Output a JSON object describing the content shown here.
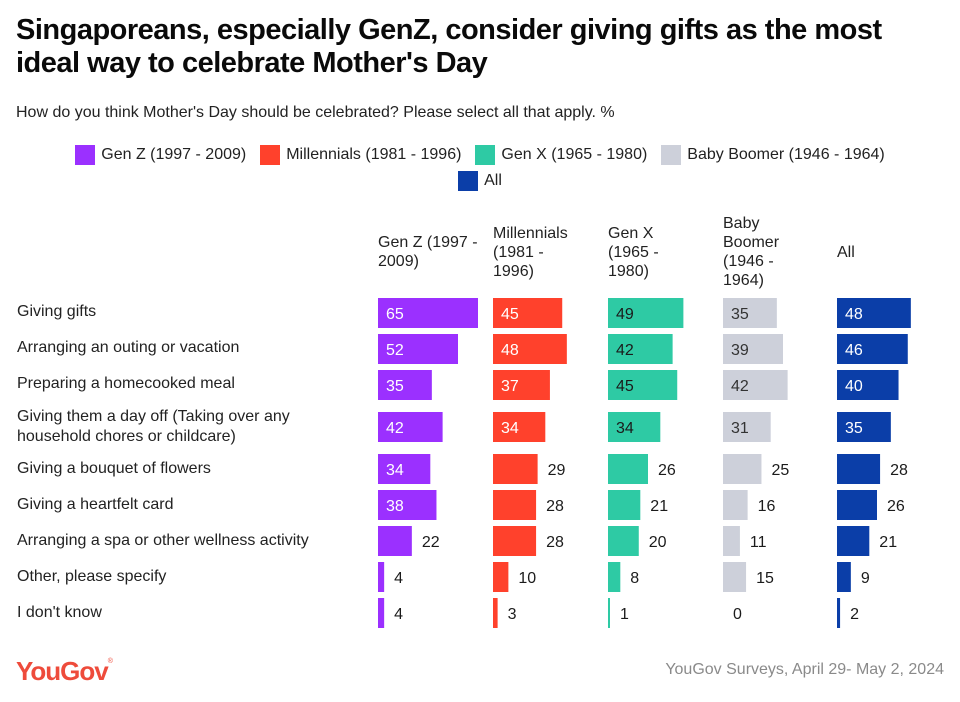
{
  "header": {
    "title": "Singaporeans, especially GenZ, consider giving gifts as the most ideal way to celebrate Mother's Day",
    "subtitle": "How do you think Mother's Day should be celebrated? Please select all that apply. %"
  },
  "footer": {
    "logo": "YouGov",
    "logo_mark": "®",
    "source": "YouGov Surveys, April 29- May 2, 2024"
  },
  "chart_data": {
    "type": "bar",
    "orientation": "horizontal",
    "layout": "small-multiples",
    "title": "Singaporeans, especially GenZ, consider giving gifts as the most ideal way to celebrate Mother's Day",
    "subtitle": "How do you think Mother's Day should be celebrated? Please select all that apply. %",
    "unit": "%",
    "legend_position": "top-center",
    "grid": false,
    "categories": [
      "Giving gifts",
      "Arranging an outing or vacation",
      "Preparing a homecooked meal",
      "Giving them a day off (Taking over any household chores or childcare)",
      "Giving a bouquet of flowers",
      "Giving a heartfelt card",
      "Arranging a spa or other wellness activity",
      "Other, please specify",
      "I don't know"
    ],
    "series": [
      {
        "name": "Gen Z (1997 - 2009)",
        "header": "Gen Z (1997 - 2009)",
        "color": "#9b30ff",
        "label_color_inside": "#ffffff",
        "values": [
          65,
          52,
          35,
          42,
          34,
          38,
          22,
          4,
          4
        ]
      },
      {
        "name": "Millennials (1981 - 1996)",
        "header": "Millennials (1981 - 1996)",
        "color": "#ff412c",
        "label_color_inside": "#ffffff",
        "values": [
          45,
          48,
          37,
          34,
          29,
          28,
          28,
          10,
          3
        ]
      },
      {
        "name": "Gen X (1965 - 1980)",
        "header": "Gen X (1965 - 1980)",
        "color": "#2ecaa4",
        "label_color_inside": "#1b1b1b",
        "values": [
          49,
          42,
          45,
          34,
          26,
          21,
          20,
          8,
          1
        ]
      },
      {
        "name": "Baby Boomer (1946 - 1964)",
        "header": "Baby Boomer (1946 - 1964)",
        "color": "#cdd0da",
        "label_color_inside": "#333333",
        "values": [
          35,
          39,
          42,
          31,
          25,
          16,
          11,
          15,
          0
        ]
      },
      {
        "name": "All",
        "header": "All",
        "color": "#0b3ea8",
        "label_color_inside": "#ffffff",
        "values": [
          48,
          46,
          40,
          35,
          28,
          26,
          21,
          9,
          2
        ]
      }
    ],
    "xlim": [
      0,
      65
    ]
  }
}
